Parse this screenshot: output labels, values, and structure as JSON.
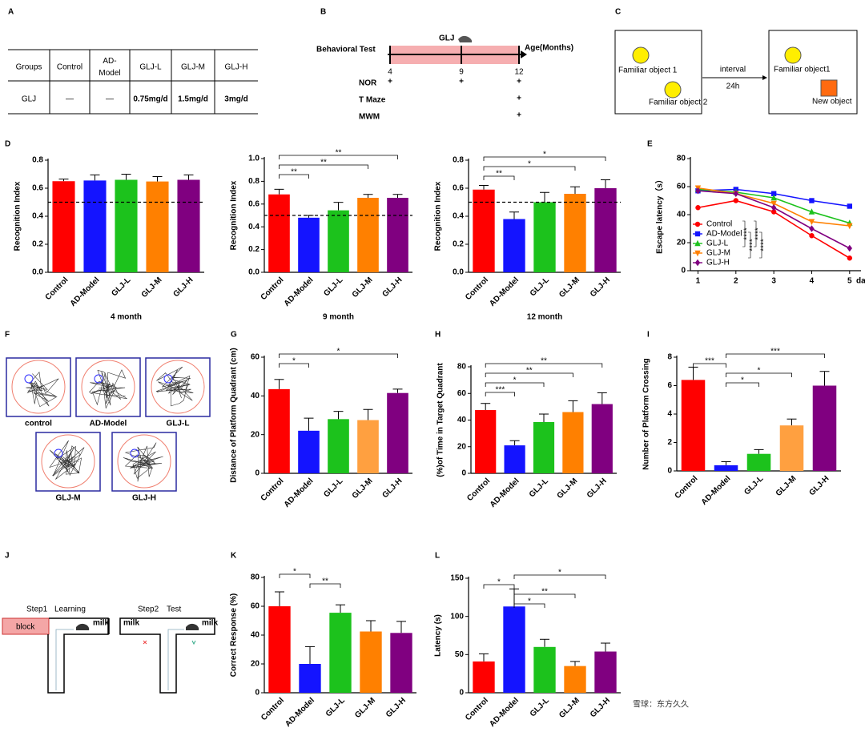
{
  "panel_labels": [
    "A",
    "B",
    "C",
    "D",
    "E",
    "F",
    "G",
    "H",
    "I",
    "J",
    "K",
    "L"
  ],
  "table": {
    "header": [
      "Groups",
      "Control",
      "AD-\nModel",
      "GLJ-L",
      "GLJ-M",
      "GLJ-H"
    ],
    "rows": [
      [
        "GLJ",
        "—",
        "—",
        "0.75mg/d",
        "1.5mg/d",
        "3mg/d"
      ]
    ]
  },
  "timeline": {
    "label": "Behavioral Test",
    "drug": "GLJ",
    "axis_label": "Age(Months)",
    "ages": [
      "4",
      "9",
      "12"
    ],
    "tests": [
      {
        "name": "NOR",
        "marks": [
          "+",
          "+",
          "+"
        ]
      },
      {
        "name": "T  Maze",
        "marks": [
          null,
          null,
          "+"
        ]
      },
      {
        "name": "MWM",
        "marks": [
          null,
          null,
          "+"
        ]
      }
    ]
  },
  "nor_diagram": {
    "left": [
      "Familiar object 1",
      "Familiar object 2"
    ],
    "interval": "interval",
    "time": "24h",
    "right": [
      "Familiar object1",
      "New object"
    ]
  },
  "maze_tracks": [
    "control",
    "AD-Model",
    "GLJ-L",
    "GLJ-M",
    "GLJ-H"
  ],
  "t_maze": {
    "step1": "Step1",
    "learning": "Learning",
    "step2": "Step2",
    "test": "Test",
    "block": "block",
    "milk": [
      "milk",
      "milk",
      "milk"
    ]
  },
  "watermark": "雪球：东方久久",
  "chart_data": [
    {
      "type": "bar",
      "y_label": "Recognition Index",
      "x_label": "4 month",
      "categories": [
        "Control",
        "AD-Model",
        "GLJ-L",
        "GLJ-M",
        "GLJ-H"
      ],
      "colors": [
        "#ff0000",
        "#1414ff",
        "#1cc21c",
        "#ff8000",
        "#800080"
      ],
      "values": [
        0.65,
        0.655,
        0.66,
        0.648,
        0.66
      ],
      "errors": [
        0.015,
        0.04,
        0.04,
        0.035,
        0.035
      ],
      "reference_line": 0.5,
      "ylim": [
        0,
        0.8
      ],
      "yticks": [
        {
          "value": 0,
          "label": "0.0"
        },
        0.2,
        0.4,
        0.6,
        0.8
      ],
      "brackets": []
    },
    {
      "type": "bar",
      "y_label": "Recognition Index",
      "x_label": "9 month",
      "categories": [
        "Control",
        "AD-Model",
        "GLJ-L",
        "GLJ-M",
        "GLJ-H"
      ],
      "colors": [
        "#ff0000",
        "#1414ff",
        "#1cc21c",
        "#ff8000",
        "#800080"
      ],
      "values": [
        0.685,
        0.48,
        0.545,
        0.655,
        0.655
      ],
      "errors": [
        0.045,
        0.02,
        0.07,
        0.03,
        0.03
      ],
      "reference_line": 0.5,
      "ylim": [
        0,
        1
      ],
      "yticks": [
        {
          "value": 0,
          "label": "0.0"
        },
        0.2,
        0.4,
        0.6,
        0.8,
        {
          "value": 1,
          "label": "1.0"
        }
      ],
      "brackets": [
        {
          "between": [
            "Control",
            "AD-Model"
          ],
          "label": "**"
        },
        {
          "between": [
            "Control",
            "GLJ-M"
          ],
          "label": "**"
        },
        {
          "between": [
            "Control",
            "GLJ-H"
          ],
          "label": "**"
        }
      ]
    },
    {
      "type": "bar",
      "y_label": "Recognition Index",
      "x_label": "12 month",
      "categories": [
        "Control",
        "AD-Model",
        "GLJ-L",
        "GLJ-M",
        "GLJ-H"
      ],
      "colors": [
        "#ff0000",
        "#1414ff",
        "#1cc21c",
        "#ff8000",
        "#800080"
      ],
      "values": [
        0.59,
        0.38,
        0.5,
        0.56,
        0.6
      ],
      "errors": [
        0.03,
        0.05,
        0.07,
        0.05,
        0.06
      ],
      "reference_line": 0.5,
      "ylim": [
        0,
        0.8
      ],
      "yticks": [
        {
          "value": 0,
          "label": "0.0"
        },
        0.2,
        0.4,
        0.6,
        0.8
      ],
      "brackets": [
        {
          "between": [
            "Control",
            "AD-Model"
          ],
          "label": "**"
        },
        {
          "between": [
            "Control",
            "GLJ-M"
          ],
          "label": "*"
        },
        {
          "between": [
            "Control",
            "GLJ-H"
          ],
          "label": "*"
        }
      ]
    },
    {
      "type": "line",
      "y_label": "Escape latency（s）",
      "x_label": "day",
      "x": [
        1,
        2,
        3,
        4,
        5
      ],
      "xlim": [
        0.8,
        5.3
      ],
      "xticks": [
        1,
        2,
        3,
        4,
        5
      ],
      "ylim": [
        0,
        80
      ],
      "yticks": [
        0,
        20,
        40,
        60,
        80
      ],
      "series": [
        {
          "name": "Control",
          "color": "#ff0000",
          "marker": "circle",
          "values": [
            45,
            50,
            42,
            25,
            9
          ]
        },
        {
          "name": "AD-Model",
          "color": "#1414ff",
          "marker": "square",
          "values": [
            57,
            58,
            55,
            50,
            46
          ]
        },
        {
          "name": "GLJ-L",
          "color": "#1cc21c",
          "marker": "triangle-up",
          "values": [
            58,
            56,
            52,
            42,
            34
          ]
        },
        {
          "name": "GLJ-M",
          "color": "#ff8000",
          "marker": "triangle-down",
          "values": [
            59,
            55,
            48,
            35,
            32
          ]
        },
        {
          "name": "GLJ-H",
          "color": "#800080",
          "marker": "diamond",
          "values": [
            57,
            55,
            45,
            30,
            16
          ]
        }
      ],
      "annotations": [
        "****",
        "****",
        "****",
        "****"
      ]
    },
    {
      "type": "bar",
      "y_label": "Distance of Platform Quadrant (cm)",
      "categories": [
        "Control",
        "AD-Model",
        "GLJ-L",
        "GLJ-M",
        "GLJ-H"
      ],
      "colors": [
        "#ff0000",
        "#1414ff",
        "#1cc21c",
        "#ffa040",
        "#800080"
      ],
      "values": [
        43.5,
        22,
        28,
        27.5,
        41.5
      ],
      "errors": [
        5,
        6.5,
        4,
        5.5,
        2
      ],
      "ylim": [
        0,
        60
      ],
      "yticks": [
        0,
        20,
        40,
        60
      ],
      "brackets": [
        {
          "between": [
            "Control",
            "AD-Model"
          ],
          "label": "*"
        },
        {
          "between": [
            "Control",
            "GLJ-H"
          ],
          "label": "*"
        }
      ]
    },
    {
      "type": "bar",
      "y_label": "(%)of Time in Target Quadrant",
      "categories": [
        "Control",
        "AD-Model",
        "GLJ-L",
        "GLJ-M",
        "GLJ-H"
      ],
      "colors": [
        "#ff0000",
        "#1414ff",
        "#1cc21c",
        "#ff8000",
        "#800080"
      ],
      "values": [
        47.5,
        21,
        38.5,
        46,
        52
      ],
      "errors": [
        5,
        3.5,
        6,
        8.5,
        8.5
      ],
      "ylim": [
        0,
        80
      ],
      "yticks": [
        0,
        20,
        40,
        60,
        80
      ],
      "brackets": [
        {
          "between": [
            "Control",
            "AD-Model"
          ],
          "label": "***"
        },
        {
          "between": [
            "Control",
            "GLJ-L"
          ],
          "label": "*"
        },
        {
          "between": [
            "Control",
            "GLJ-M"
          ],
          "label": "**"
        },
        {
          "between": [
            "Control",
            "GLJ-H"
          ],
          "label": "**"
        }
      ]
    },
    {
      "type": "bar",
      "y_label": "Number of Platform Crossing",
      "categories": [
        "Control",
        "AD-Model",
        "GLJ-L",
        "GLJ-M",
        "GLJ-H"
      ],
      "colors": [
        "#ff0000",
        "#1414ff",
        "#1cc21c",
        "#ffa040",
        "#800080"
      ],
      "values": [
        6.4,
        0.4,
        1.2,
        3.2,
        6
      ],
      "errors": [
        0.9,
        0.25,
        0.3,
        0.45,
        1
      ],
      "ylim": [
        0,
        8
      ],
      "yticks": [
        0,
        2,
        4,
        6,
        8
      ],
      "brackets": [
        {
          "between": [
            "AD-Model",
            "GLJ-L"
          ],
          "label": "*"
        },
        {
          "between": [
            "AD-Model",
            "GLJ-M"
          ],
          "label": "*"
        },
        {
          "between": [
            "Control",
            "AD-Model"
          ],
          "label": "***"
        },
        {
          "between": [
            "AD-Model",
            "GLJ-H"
          ],
          "label": "***"
        }
      ]
    },
    {
      "type": "bar",
      "y_label": "Correct Response (%)",
      "categories": [
        "Control",
        "AD-Model",
        "GLJ-L",
        "GLJ-M",
        "GLJ-H"
      ],
      "colors": [
        "#ff0000",
        "#1414ff",
        "#1cc21c",
        "#ff8000",
        "#800080"
      ],
      "values": [
        60,
        20,
        55.5,
        42.5,
        41.5
      ],
      "errors": [
        10,
        12,
        5.5,
        7.5,
        8
      ],
      "ylim": [
        0,
        80
      ],
      "yticks": [
        0,
        20,
        40,
        60,
        80
      ],
      "brackets": [
        {
          "between": [
            "AD-Model",
            "GLJ-L"
          ],
          "label": "**"
        },
        {
          "between": [
            "Control",
            "AD-Model"
          ],
          "label": "*"
        }
      ]
    },
    {
      "type": "bar",
      "y_label": "Latency (s)",
      "categories": [
        "Control",
        "AD-Model",
        "GLJ-L",
        "GLJ-M",
        "GLJ-H"
      ],
      "colors": [
        "#ff0000",
        "#1414ff",
        "#1cc21c",
        "#ff8000",
        "#800080"
      ],
      "values": [
        41,
        113,
        60,
        35,
        54
      ],
      "errors": [
        10,
        23,
        10,
        6,
        11
      ],
      "ylim": [
        0,
        150
      ],
      "yticks": [
        0,
        50,
        100,
        150
      ],
      "brackets": [
        {
          "between": [
            "AD-Model",
            "GLJ-L"
          ],
          "label": "*"
        },
        {
          "between": [
            "AD-Model",
            "GLJ-M"
          ],
          "label": "**"
        },
        {
          "between": [
            "Control",
            "AD-Model"
          ],
          "label": "*"
        },
        {
          "between": [
            "AD-Model",
            "GLJ-H"
          ],
          "label": "*"
        }
      ]
    }
  ]
}
